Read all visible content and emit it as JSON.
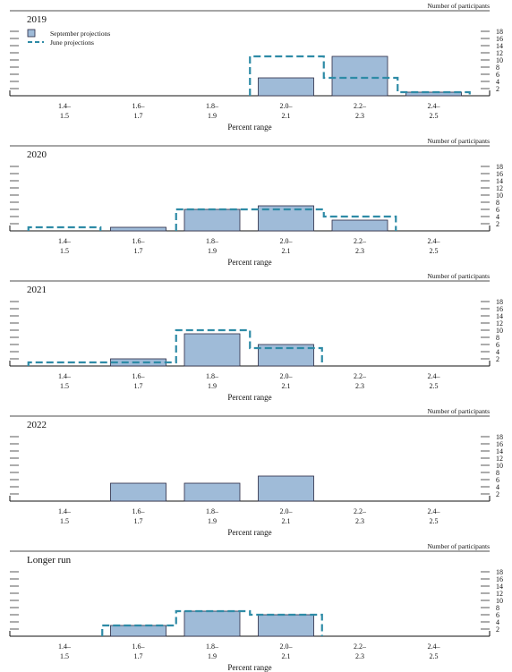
{
  "chart_data": [
    {
      "type": "bar",
      "title": "2019",
      "xlabel": "Percent range",
      "ylabel": "Number of participants",
      "categories": [
        "1.4–1.5",
        "1.6–1.7",
        "1.8–1.9",
        "2.0–2.1",
        "2.2–2.3",
        "2.4–2.5"
      ],
      "category_lines": [
        [
          "1.4–",
          "1.5"
        ],
        [
          "1.6–",
          "1.7"
        ],
        [
          "1.8–",
          "1.9"
        ],
        [
          "2.0–",
          "2.1"
        ],
        [
          "2.2–",
          "2.3"
        ],
        [
          "2.4–",
          "2.5"
        ]
      ],
      "yticks": [
        2,
        4,
        6,
        8,
        10,
        12,
        14,
        16,
        18
      ],
      "ylim": [
        0,
        18
      ],
      "series": [
        {
          "name": "September projections",
          "style": "bar",
          "values": [
            0,
            0,
            0,
            5,
            11,
            1
          ]
        },
        {
          "name": "June projections",
          "style": "dashed-step",
          "values": [
            0,
            0,
            0,
            11,
            5,
            1
          ]
        }
      ],
      "legend": {
        "placement": "top-left",
        "entries": [
          "September projections",
          "June projections"
        ]
      }
    },
    {
      "type": "bar",
      "title": "2020",
      "xlabel": "Percent range",
      "ylabel": "Number of participants",
      "categories": [
        "1.4–1.5",
        "1.6–1.7",
        "1.8–1.9",
        "2.0–2.1",
        "2.2–2.3",
        "2.4–2.5"
      ],
      "category_lines": [
        [
          "1.4–",
          "1.5"
        ],
        [
          "1.6–",
          "1.7"
        ],
        [
          "1.8–",
          "1.9"
        ],
        [
          "2.0–",
          "2.1"
        ],
        [
          "2.2–",
          "2.3"
        ],
        [
          "2.4–",
          "2.5"
        ]
      ],
      "yticks": [
        2,
        4,
        6,
        8,
        10,
        12,
        14,
        16,
        18
      ],
      "ylim": [
        0,
        18
      ],
      "series": [
        {
          "name": "September projections",
          "style": "bar",
          "values": [
            0,
            1,
            6,
            7,
            3,
            0
          ]
        },
        {
          "name": "June projections",
          "style": "dashed-step",
          "values": [
            1,
            0,
            6,
            6,
            4,
            0
          ]
        }
      ]
    },
    {
      "type": "bar",
      "title": "2021",
      "xlabel": "Percent range",
      "ylabel": "Number of participants",
      "categories": [
        "1.4–1.5",
        "1.6–1.7",
        "1.8–1.9",
        "2.0–2.1",
        "2.2–2.3",
        "2.4–2.5"
      ],
      "category_lines": [
        [
          "1.4–",
          "1.5"
        ],
        [
          "1.6–",
          "1.7"
        ],
        [
          "1.8–",
          "1.9"
        ],
        [
          "2.0–",
          "2.1"
        ],
        [
          "2.2–",
          "2.3"
        ],
        [
          "2.4–",
          "2.5"
        ]
      ],
      "yticks": [
        2,
        4,
        6,
        8,
        10,
        12,
        14,
        16,
        18
      ],
      "ylim": [
        0,
        18
      ],
      "series": [
        {
          "name": "September projections",
          "style": "bar",
          "values": [
            0,
            2,
            9,
            6,
            0,
            0
          ]
        },
        {
          "name": "June projections",
          "style": "dashed-step",
          "values": [
            1,
            1,
            10,
            5,
            0,
            0
          ]
        }
      ]
    },
    {
      "type": "bar",
      "title": "2022",
      "xlabel": "Percent range",
      "ylabel": "Number of participants",
      "categories": [
        "1.4–1.5",
        "1.6–1.7",
        "1.8–1.9",
        "2.0–2.1",
        "2.2–2.3",
        "2.4–2.5"
      ],
      "category_lines": [
        [
          "1.4–",
          "1.5"
        ],
        [
          "1.6–",
          "1.7"
        ],
        [
          "1.8–",
          "1.9"
        ],
        [
          "2.0–",
          "2.1"
        ],
        [
          "2.2–",
          "2.3"
        ],
        [
          "2.4–",
          "2.5"
        ]
      ],
      "yticks": [
        2,
        4,
        6,
        8,
        10,
        12,
        14,
        16,
        18
      ],
      "ylim": [
        0,
        18
      ],
      "series": [
        {
          "name": "September projections",
          "style": "bar",
          "values": [
            0,
            5,
            5,
            7,
            0,
            0
          ]
        }
      ]
    },
    {
      "type": "bar",
      "title": "Longer run",
      "xlabel": "Percent range",
      "ylabel": "Number of participants",
      "categories": [
        "1.4–1.5",
        "1.6–1.7",
        "1.8–1.9",
        "2.0–2.1",
        "2.2–2.3",
        "2.4–2.5"
      ],
      "category_lines": [
        [
          "1.4–",
          "1.5"
        ],
        [
          "1.6–",
          "1.7"
        ],
        [
          "1.8–",
          "1.9"
        ],
        [
          "2.0–",
          "2.1"
        ],
        [
          "2.2–",
          "2.3"
        ],
        [
          "2.4–",
          "2.5"
        ]
      ],
      "yticks": [
        2,
        4,
        6,
        8,
        10,
        12,
        14,
        16,
        18
      ],
      "ylim": [
        0,
        18
      ],
      "series": [
        {
          "name": "September projections",
          "style": "bar",
          "values": [
            0,
            3,
            7,
            6,
            0,
            0
          ]
        },
        {
          "name": "June projections",
          "style": "dashed-step",
          "values": [
            0,
            3,
            7,
            6,
            0,
            0
          ]
        }
      ]
    }
  ],
  "colors": {
    "bar_fill": "#9fbbd8",
    "bar_stroke": "#2a2a44",
    "dashed": "#2e8ba6",
    "axis": "#111111"
  }
}
